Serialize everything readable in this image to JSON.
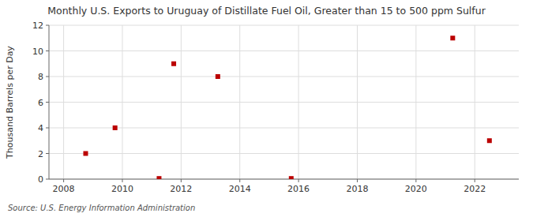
{
  "chart_data": {
    "type": "scatter",
    "title": "Monthly U.S. Exports to Uruguay of Distillate Fuel Oil, Greater than 15 to 500 ppm Sulfur",
    "ylabel": "Thousand Barrels per Day",
    "source": "Source: U.S. Energy Information Administration",
    "x": [
      2008.75,
      2009.75,
      2011.25,
      2011.75,
      2013.25,
      2015.75,
      2021.25,
      2022.5
    ],
    "values": [
      2.0,
      4.0,
      0.05,
      9.0,
      8.0,
      0.05,
      11.0,
      3.0
    ],
    "color": "#bb0000",
    "marker": "square",
    "xlim": [
      2007.5,
      2023.5
    ],
    "ylim": [
      0,
      12
    ],
    "xticks": [
      2008,
      2010,
      2012,
      2014,
      2016,
      2018,
      2020,
      2022
    ],
    "yticks": [
      0,
      2,
      4,
      6,
      8,
      10,
      12
    ],
    "grid": true
  }
}
